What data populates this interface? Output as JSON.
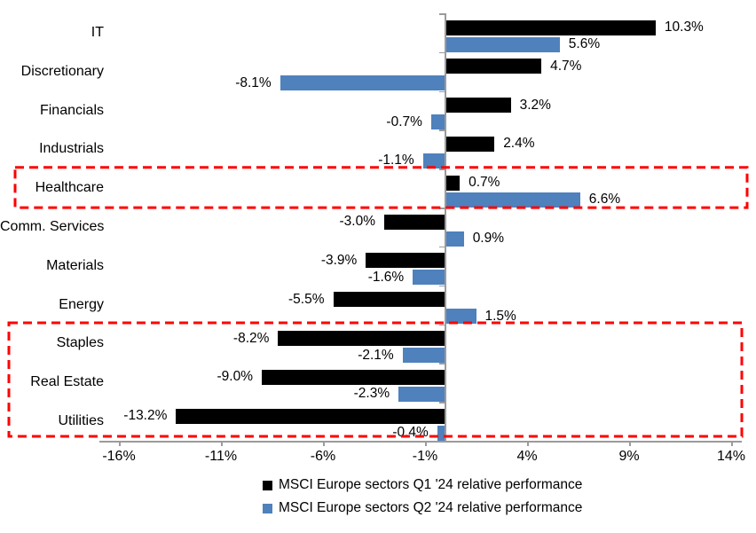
{
  "chart_data": {
    "type": "bar",
    "orientation": "horizontal",
    "title": "",
    "categories": [
      "IT",
      "Discretionary",
      "Financials",
      "Industrials",
      "Healthcare",
      "Comm. Services",
      "Materials",
      "Energy",
      "Staples",
      "Real Estate",
      "Utilities"
    ],
    "series": [
      {
        "name": "MSCI Europe sectors Q1 '24 relative performance",
        "color": "#000000",
        "values": [
          10.3,
          4.7,
          3.2,
          2.4,
          0.7,
          -3.0,
          -3.9,
          -5.5,
          -8.2,
          -9.0,
          -13.2
        ],
        "labels": [
          "10.3%",
          "4.7%",
          "3.2%",
          "2.4%",
          "0.7%",
          "-3.0%",
          "-3.9%",
          "-5.5%",
          "-8.2%",
          "-9.0%",
          "-13.2%"
        ]
      },
      {
        "name": "MSCI Europe sectors Q2 '24 relative performance",
        "color": "#4F81BD",
        "values": [
          5.6,
          -8.1,
          -0.7,
          -1.1,
          6.6,
          0.9,
          -1.6,
          1.5,
          -2.1,
          -2.3,
          -0.4
        ],
        "labels": [
          "5.6%",
          "-8.1%",
          "-0.7%",
          "-1.1%",
          "6.6%",
          "0.9%",
          "-1.6%",
          "1.5%",
          "-2.1%",
          "-2.3%",
          "-0.4%"
        ]
      }
    ],
    "x_axis": {
      "ticks": [
        -16,
        -11,
        -6,
        -1,
        4,
        9,
        14
      ],
      "tick_labels": [
        "-16%",
        "-11%",
        "-6%",
        "-1%",
        "4%",
        "9%",
        "14%"
      ],
      "range": [
        -17,
        14.5
      ]
    },
    "grid": false,
    "legend_position": "bottom",
    "highlight_color": "#FF0000",
    "axis_color": "#9B9B9B",
    "highlights": [
      {
        "name": "healthcare-highlight",
        "sectors": [
          "Healthcare"
        ],
        "row_start": 4,
        "row_end": 4
      },
      {
        "name": "staples-realestate-utilities-highlight",
        "sectors": [
          "Staples",
          "Real Estate",
          "Utilities"
        ],
        "row_start": 8,
        "row_end": 10
      }
    ]
  }
}
